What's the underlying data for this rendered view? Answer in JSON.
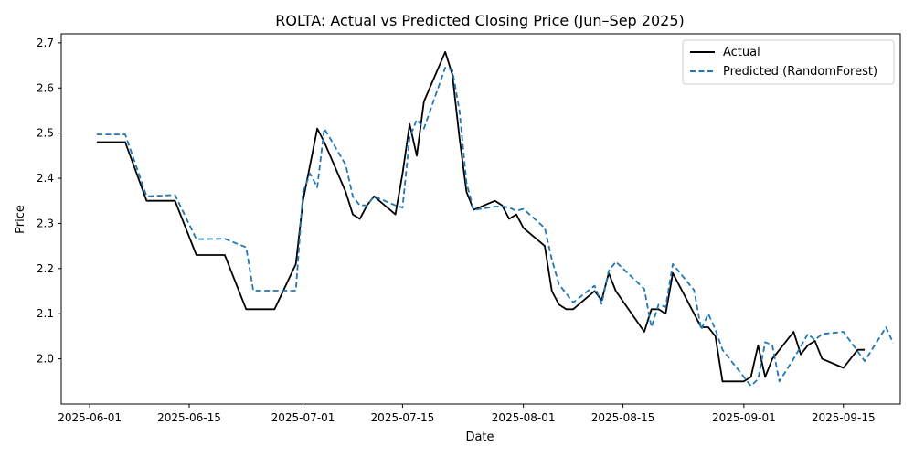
{
  "chart_data": {
    "type": "line",
    "title": "ROLTA: Actual vs Predicted Closing Price (Jun–Sep 2025)",
    "xlabel": "Date",
    "ylabel": "Price",
    "x_ticks": [
      "2025-06-01",
      "2025-06-15",
      "2025-07-01",
      "2025-07-15",
      "2025-08-01",
      "2025-08-15",
      "2025-09-01",
      "2025-09-15"
    ],
    "y_ticks": [
      "2.0",
      "2.1",
      "2.2",
      "2.3",
      "2.4",
      "2.5",
      "2.6",
      "2.7"
    ],
    "xlim": [
      "2025-05-28",
      "2025-09-23"
    ],
    "ylim": [
      1.9,
      2.72
    ],
    "grid": false,
    "legend_position": "top-right",
    "colors": {
      "actual": "#000000",
      "predicted": "#1f77b4"
    },
    "series": [
      {
        "name": "Actual",
        "line_style": "solid",
        "points": [
          [
            "2025-06-02",
            2.48
          ],
          [
            "2025-06-06",
            2.48
          ],
          [
            "2025-06-09",
            2.35
          ],
          [
            "2025-06-13",
            2.35
          ],
          [
            "2025-06-16",
            2.23
          ],
          [
            "2025-06-20",
            2.23
          ],
          [
            "2025-06-23",
            2.11
          ],
          [
            "2025-06-27",
            2.11
          ],
          [
            "2025-06-30",
            2.21
          ],
          [
            "2025-07-01",
            2.35
          ],
          [
            "2025-07-02",
            2.43
          ],
          [
            "2025-07-03",
            2.51
          ],
          [
            "2025-07-04",
            2.48
          ],
          [
            "2025-07-07",
            2.37
          ],
          [
            "2025-07-08",
            2.32
          ],
          [
            "2025-07-09",
            2.31
          ],
          [
            "2025-07-10",
            2.34
          ],
          [
            "2025-07-11",
            2.36
          ],
          [
            "2025-07-14",
            2.32
          ],
          [
            "2025-07-15",
            2.41
          ],
          [
            "2025-07-16",
            2.52
          ],
          [
            "2025-07-17",
            2.45
          ],
          [
            "2025-07-18",
            2.57
          ],
          [
            "2025-07-21",
            2.68
          ],
          [
            "2025-07-22",
            2.63
          ],
          [
            "2025-07-23",
            2.49
          ],
          [
            "2025-07-24",
            2.37
          ],
          [
            "2025-07-25",
            2.33
          ],
          [
            "2025-07-28",
            2.35
          ],
          [
            "2025-07-29",
            2.34
          ],
          [
            "2025-07-30",
            2.31
          ],
          [
            "2025-07-31",
            2.32
          ],
          [
            "2025-08-01",
            2.29
          ],
          [
            "2025-08-04",
            2.25
          ],
          [
            "2025-08-05",
            2.15
          ],
          [
            "2025-08-06",
            2.12
          ],
          [
            "2025-08-07",
            2.11
          ],
          [
            "2025-08-08",
            2.11
          ],
          [
            "2025-08-11",
            2.15
          ],
          [
            "2025-08-12",
            2.13
          ],
          [
            "2025-08-13",
            2.19
          ],
          [
            "2025-08-14",
            2.15
          ],
          [
            "2025-08-18",
            2.06
          ],
          [
            "2025-08-19",
            2.11
          ],
          [
            "2025-08-20",
            2.11
          ],
          [
            "2025-08-21",
            2.1
          ],
          [
            "2025-08-22",
            2.19
          ],
          [
            "2025-08-25",
            2.1
          ],
          [
            "2025-08-26",
            2.07
          ],
          [
            "2025-08-27",
            2.07
          ],
          [
            "2025-08-28",
            2.05
          ],
          [
            "2025-08-29",
            1.95
          ],
          [
            "2025-09-01",
            1.95
          ],
          [
            "2025-09-02",
            1.96
          ],
          [
            "2025-09-03",
            2.03
          ],
          [
            "2025-09-04",
            1.96
          ],
          [
            "2025-09-05",
            2.0
          ],
          [
            "2025-09-08",
            2.06
          ],
          [
            "2025-09-09",
            2.01
          ],
          [
            "2025-09-10",
            2.03
          ],
          [
            "2025-09-11",
            2.04
          ],
          [
            "2025-09-12",
            2.0
          ],
          [
            "2025-09-15",
            1.98
          ],
          [
            "2025-09-17",
            2.02
          ],
          [
            "2025-09-18",
            2.02
          ]
        ]
      },
      {
        "name": "Predicted (RandomForest)",
        "line_style": "dashed",
        "points": [
          [
            "2025-06-02",
            2.497
          ],
          [
            "2025-06-06",
            2.497
          ],
          [
            "2025-06-09",
            2.36
          ],
          [
            "2025-06-13",
            2.363
          ],
          [
            "2025-06-16",
            2.265
          ],
          [
            "2025-06-20",
            2.266
          ],
          [
            "2025-06-23",
            2.247
          ],
          [
            "2025-06-24",
            2.151
          ],
          [
            "2025-06-27",
            2.151
          ],
          [
            "2025-06-30",
            2.151
          ],
          [
            "2025-07-01",
            2.37
          ],
          [
            "2025-07-02",
            2.41
          ],
          [
            "2025-07-03",
            2.38
          ],
          [
            "2025-07-04",
            2.51
          ],
          [
            "2025-07-07",
            2.43
          ],
          [
            "2025-07-08",
            2.36
          ],
          [
            "2025-07-09",
            2.34
          ],
          [
            "2025-07-10",
            2.34
          ],
          [
            "2025-07-11",
            2.36
          ],
          [
            "2025-07-14",
            2.34
          ],
          [
            "2025-07-15",
            2.335
          ],
          [
            "2025-07-16",
            2.49
          ],
          [
            "2025-07-17",
            2.53
          ],
          [
            "2025-07-18",
            2.51
          ],
          [
            "2025-07-21",
            2.645
          ],
          [
            "2025-07-22",
            2.64
          ],
          [
            "2025-07-23",
            2.55
          ],
          [
            "2025-07-24",
            2.39
          ],
          [
            "2025-07-25",
            2.33
          ],
          [
            "2025-07-28",
            2.337
          ],
          [
            "2025-07-29",
            2.338
          ],
          [
            "2025-07-30",
            2.335
          ],
          [
            "2025-07-31",
            2.328
          ],
          [
            "2025-08-01",
            2.332
          ],
          [
            "2025-08-04",
            2.29
          ],
          [
            "2025-08-05",
            2.22
          ],
          [
            "2025-08-06",
            2.165
          ],
          [
            "2025-08-07",
            2.145
          ],
          [
            "2025-08-08",
            2.125
          ],
          [
            "2025-08-11",
            2.162
          ],
          [
            "2025-08-12",
            2.122
          ],
          [
            "2025-08-13",
            2.195
          ],
          [
            "2025-08-14",
            2.215
          ],
          [
            "2025-08-18",
            2.155
          ],
          [
            "2025-08-19",
            2.07
          ],
          [
            "2025-08-20",
            2.12
          ],
          [
            "2025-08-21",
            2.115
          ],
          [
            "2025-08-22",
            2.21
          ],
          [
            "2025-08-25",
            2.152
          ],
          [
            "2025-08-26",
            2.065
          ],
          [
            "2025-08-27",
            2.1
          ],
          [
            "2025-08-28",
            2.065
          ],
          [
            "2025-08-29",
            2.02
          ],
          [
            "2025-09-01",
            1.96
          ],
          [
            "2025-09-02",
            1.94
          ],
          [
            "2025-09-03",
            1.955
          ],
          [
            "2025-09-04",
            2.037
          ],
          [
            "2025-09-05",
            2.03
          ],
          [
            "2025-09-06",
            1.95
          ],
          [
            "2025-09-08",
            2.0
          ],
          [
            "2025-09-10",
            2.055
          ],
          [
            "2025-09-11",
            2.042
          ],
          [
            "2025-09-12",
            2.055
          ],
          [
            "2025-09-15",
            2.06
          ],
          [
            "2025-09-18",
            1.995
          ],
          [
            "2025-09-21",
            2.07
          ],
          [
            "2025-09-22",
            2.035
          ]
        ]
      }
    ]
  }
}
